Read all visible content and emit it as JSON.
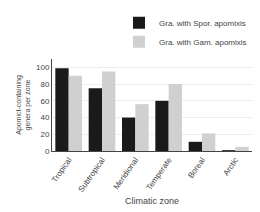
{
  "chart_data": {
    "type": "bar",
    "categories": [
      "Tropical",
      "Subtropical",
      "Meridional",
      "Temperate",
      "Boreal",
      "Arctic"
    ],
    "series": [
      {
        "name": "Gra. with Spor. apomixis",
        "color": "#1a1a1a",
        "values": [
          99,
          75,
          40,
          60,
          11,
          1
        ]
      },
      {
        "name": "Gra. with Gam. apomixis",
        "color": "#d0d0d0",
        "values": [
          90,
          95,
          56,
          80,
          21,
          5
        ]
      }
    ],
    "xlabel": "Climatic zone",
    "ylabel": "Apomict-containing genera per zone",
    "ylim": [
      0,
      110
    ],
    "yticks": [
      0,
      20,
      40,
      60,
      80,
      100
    ],
    "grid": true,
    "legend": "upper right"
  }
}
